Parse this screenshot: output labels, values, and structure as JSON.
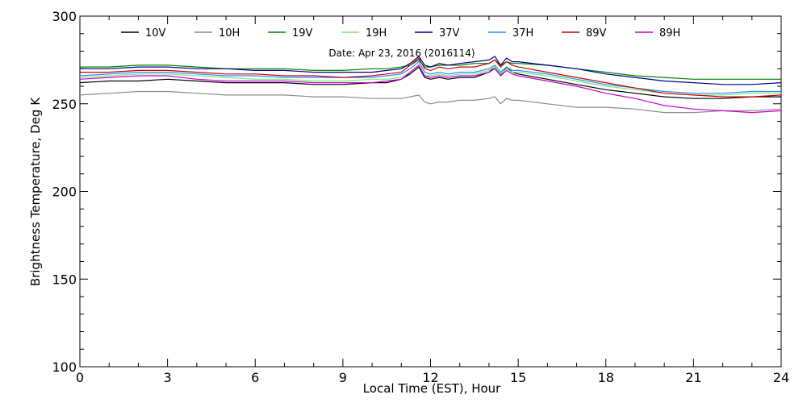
{
  "chart_data": {
    "type": "line",
    "title": "Date: Apr 23, 2016 (2016114)",
    "xlabel": "Local Time (EST), Hour",
    "ylabel": "Brightness Temperature, Deg K",
    "xlim": [
      0,
      24
    ],
    "ylim": [
      100,
      300
    ],
    "xticks": [
      0,
      3,
      6,
      9,
      12,
      15,
      18,
      21,
      24
    ],
    "yticks": [
      100,
      150,
      200,
      250,
      300
    ],
    "grid": false,
    "legend_position": "top",
    "x": [
      0,
      1,
      2,
      3,
      4,
      5,
      6,
      7,
      8,
      9,
      10,
      10.5,
      11,
      11.3,
      11.6,
      11.8,
      12,
      12.3,
      12.6,
      13,
      13.5,
      14,
      14.2,
      14.4,
      14.6,
      14.8,
      15,
      16,
      17,
      18,
      19,
      20,
      21,
      22,
      23,
      24
    ],
    "series": [
      {
        "name": "10V",
        "color": "#000000",
        "values": [
          262,
          263,
          263,
          264,
          263,
          262,
          262,
          262,
          261,
          261,
          262,
          262,
          264,
          267,
          271,
          265,
          264,
          265,
          264,
          265,
          265,
          268,
          271,
          266,
          271,
          268,
          267,
          264,
          261,
          258,
          256,
          254,
          253,
          253,
          254,
          254
        ]
      },
      {
        "name": "10H",
        "color": "#8c8c8c",
        "values": [
          255,
          256,
          257,
          257,
          256,
          255,
          255,
          255,
          254,
          254,
          253,
          253,
          253,
          254,
          255,
          251,
          250,
          251,
          251,
          252,
          252,
          253,
          254,
          250,
          253,
          252,
          252,
          250,
          248,
          248,
          247,
          245,
          245,
          246,
          246,
          247
        ]
      },
      {
        "name": "19V",
        "color": "#008000",
        "values": [
          271,
          271,
          272,
          272,
          271,
          270,
          270,
          270,
          269,
          269,
          270,
          270,
          271,
          272,
          275,
          271,
          271,
          272,
          272,
          272,
          273,
          273,
          275,
          272,
          274,
          273,
          273,
          272,
          270,
          268,
          266,
          265,
          264,
          264,
          264,
          264
        ]
      },
      {
        "name": "19H",
        "color": "#7be87b",
        "values": [
          265,
          266,
          267,
          267,
          266,
          265,
          264,
          264,
          263,
          263,
          264,
          264,
          265,
          268,
          272,
          266,
          266,
          267,
          266,
          267,
          267,
          269,
          271,
          267,
          270,
          268,
          268,
          266,
          263,
          260,
          258,
          256,
          255,
          255,
          256,
          256
        ]
      },
      {
        "name": "37V",
        "color": "#00008b",
        "values": [
          270,
          270,
          271,
          271,
          270,
          270,
          269,
          269,
          268,
          268,
          268,
          269,
          270,
          273,
          277,
          272,
          271,
          273,
          272,
          273,
          274,
          275,
          277,
          272,
          276,
          274,
          274,
          272,
          270,
          267,
          265,
          263,
          262,
          261,
          261,
          262
        ]
      },
      {
        "name": "37H",
        "color": "#1e90ff",
        "values": [
          266,
          267,
          268,
          268,
          267,
          266,
          266,
          265,
          265,
          265,
          265,
          266,
          267,
          270,
          274,
          268,
          267,
          268,
          267,
          268,
          268,
          270,
          272,
          268,
          271,
          269,
          269,
          267,
          264,
          261,
          259,
          257,
          256,
          256,
          257,
          257
        ]
      },
      {
        "name": "89V",
        "color": "#cc0000",
        "values": [
          268,
          268,
          269,
          269,
          268,
          267,
          267,
          266,
          266,
          265,
          266,
          267,
          268,
          272,
          276,
          270,
          269,
          271,
          270,
          271,
          271,
          273,
          275,
          271,
          274,
          272,
          271,
          268,
          265,
          262,
          259,
          256,
          255,
          254,
          254,
          255
        ]
      },
      {
        "name": "89H",
        "color": "#cc00cc",
        "values": [
          264,
          265,
          266,
          266,
          264,
          263,
          263,
          263,
          262,
          262,
          262,
          263,
          264,
          268,
          272,
          266,
          265,
          266,
          265,
          266,
          266,
          268,
          270,
          266,
          269,
          267,
          266,
          263,
          260,
          256,
          253,
          249,
          247,
          246,
          245,
          246
        ]
      }
    ]
  }
}
